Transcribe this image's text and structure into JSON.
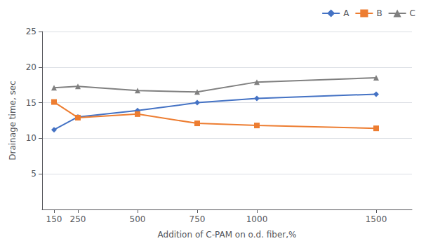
{
  "chart_data": {
    "type": "line",
    "x": [
      150,
      250,
      500,
      750,
      1000,
      1500
    ],
    "series": [
      {
        "name": "A",
        "color": "#4472C4",
        "marker": "diamond",
        "values": [
          11.2,
          13.0,
          13.9,
          15.0,
          15.6,
          16.2
        ]
      },
      {
        "name": "B",
        "color": "#ED7D31",
        "marker": "square",
        "values": [
          15.1,
          12.9,
          13.4,
          12.1,
          11.8,
          11.4
        ]
      },
      {
        "name": "C",
        "color": "#808080",
        "marker": "triangle",
        "values": [
          17.1,
          17.3,
          16.7,
          16.5,
          17.9,
          18.5
        ]
      }
    ],
    "xlabel": "Addition of C-PAM on o.d. fiber,%",
    "ylabel": "Drainage time, sec",
    "xlim": [
      100,
      1650
    ],
    "xticks": [
      150,
      250,
      500,
      750,
      1000,
      1500
    ],
    "ylim": [
      0,
      25
    ],
    "yticks": [
      5,
      10,
      15,
      20,
      25
    ],
    "grid": "y",
    "legend": "upper right"
  }
}
